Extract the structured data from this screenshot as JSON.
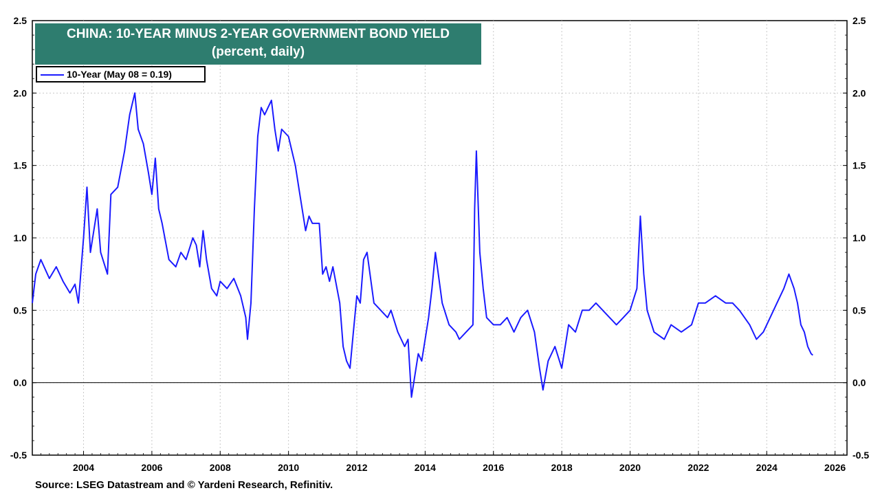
{
  "chart_data": {
    "type": "line",
    "title": "CHINA: 10-YEAR MINUS 2-YEAR GOVERNMENT BOND YIELD",
    "subtitle": "(percent, daily)",
    "legend": "10-Year (May 08 = 0.19)",
    "legend_position": "top-left",
    "source": "Source: LSEG Datastream and © Yardeni Research, Refinitiv.",
    "ylim": [
      -0.5,
      2.5
    ],
    "yticks": [
      "-0.5",
      "0.0",
      "0.5",
      "1.0",
      "1.5",
      "2.0",
      "2.5"
    ],
    "xlim": [
      2002.5,
      2026.35
    ],
    "xticks": [
      "2004",
      "2006",
      "2008",
      "2010",
      "2012",
      "2014",
      "2016",
      "2018",
      "2020",
      "2022",
      "2024",
      "2026"
    ],
    "grid": true,
    "zero_line": true,
    "series": [
      {
        "name": "10-Year",
        "color": "#1a1aff",
        "x": [
          2002.5,
          2002.6,
          2002.75,
          2003.0,
          2003.2,
          2003.4,
          2003.6,
          2003.75,
          2003.85,
          2004.0,
          2004.1,
          2004.2,
          2004.4,
          2004.5,
          2004.7,
          2004.8,
          2005.0,
          2005.2,
          2005.35,
          2005.5,
          2005.6,
          2005.75,
          2005.9,
          2006.0,
          2006.1,
          2006.2,
          2006.3,
          2006.5,
          2006.7,
          2006.85,
          2007.0,
          2007.2,
          2007.3,
          2007.4,
          2007.5,
          2007.6,
          2007.75,
          2007.9,
          2008.0,
          2008.2,
          2008.4,
          2008.6,
          2008.75,
          2008.8,
          2008.9,
          2009.0,
          2009.1,
          2009.2,
          2009.3,
          2009.5,
          2009.6,
          2009.7,
          2009.8,
          2010.0,
          2010.1,
          2010.2,
          2010.3,
          2010.4,
          2010.5,
          2010.6,
          2010.7,
          2010.9,
          2011.0,
          2011.1,
          2011.2,
          2011.3,
          2011.5,
          2011.6,
          2011.7,
          2011.8,
          2011.9,
          2012.0,
          2012.1,
          2012.2,
          2012.3,
          2012.5,
          2012.7,
          2012.9,
          2013.0,
          2013.2,
          2013.4,
          2013.5,
          2013.6,
          2013.8,
          2013.9,
          2014.0,
          2014.1,
          2014.2,
          2014.3,
          2014.5,
          2014.7,
          2014.9,
          2015.0,
          2015.2,
          2015.4,
          2015.45,
          2015.5,
          2015.6,
          2015.7,
          2015.8,
          2016.0,
          2016.2,
          2016.4,
          2016.6,
          2016.8,
          2017.0,
          2017.2,
          2017.35,
          2017.45,
          2017.6,
          2017.8,
          2018.0,
          2018.2,
          2018.4,
          2018.6,
          2018.8,
          2019.0,
          2019.2,
          2019.4,
          2019.6,
          2019.8,
          2020.0,
          2020.2,
          2020.3,
          2020.4,
          2020.5,
          2020.7,
          2021.0,
          2021.2,
          2021.5,
          2021.8,
          2022.0,
          2022.2,
          2022.5,
          2022.8,
          2023.0,
          2023.2,
          2023.5,
          2023.7,
          2023.9,
          2024.1,
          2024.3,
          2024.5,
          2024.65,
          2024.8,
          2024.9,
          2025.0,
          2025.1,
          2025.2,
          2025.3,
          2025.35
        ],
        "values": [
          0.55,
          0.75,
          0.85,
          0.72,
          0.8,
          0.7,
          0.62,
          0.68,
          0.55,
          1.0,
          1.35,
          0.9,
          1.2,
          0.9,
          0.75,
          1.3,
          1.35,
          1.6,
          1.85,
          2.0,
          1.75,
          1.65,
          1.45,
          1.3,
          1.55,
          1.2,
          1.1,
          0.85,
          0.8,
          0.9,
          0.85,
          1.0,
          0.95,
          0.8,
          1.05,
          0.85,
          0.65,
          0.6,
          0.7,
          0.65,
          0.72,
          0.6,
          0.45,
          0.3,
          0.55,
          1.2,
          1.7,
          1.9,
          1.85,
          1.95,
          1.75,
          1.6,
          1.75,
          1.7,
          1.6,
          1.5,
          1.35,
          1.2,
          1.05,
          1.15,
          1.1,
          1.1,
          0.75,
          0.8,
          0.7,
          0.8,
          0.55,
          0.25,
          0.15,
          0.1,
          0.35,
          0.6,
          0.55,
          0.85,
          0.9,
          0.55,
          0.5,
          0.45,
          0.5,
          0.35,
          0.25,
          0.3,
          -0.1,
          0.2,
          0.15,
          0.3,
          0.45,
          0.65,
          0.9,
          0.55,
          0.4,
          0.35,
          0.3,
          0.35,
          0.4,
          1.2,
          1.6,
          0.9,
          0.65,
          0.45,
          0.4,
          0.4,
          0.45,
          0.35,
          0.45,
          0.5,
          0.35,
          0.1,
          -0.05,
          0.15,
          0.25,
          0.1,
          0.4,
          0.35,
          0.5,
          0.5,
          0.55,
          0.5,
          0.45,
          0.4,
          0.45,
          0.5,
          0.65,
          1.15,
          0.75,
          0.5,
          0.35,
          0.3,
          0.4,
          0.35,
          0.4,
          0.55,
          0.55,
          0.6,
          0.55,
          0.55,
          0.5,
          0.4,
          0.3,
          0.35,
          0.45,
          0.55,
          0.65,
          0.75,
          0.65,
          0.55,
          0.4,
          0.35,
          0.25,
          0.2,
          0.19
        ]
      }
    ]
  }
}
